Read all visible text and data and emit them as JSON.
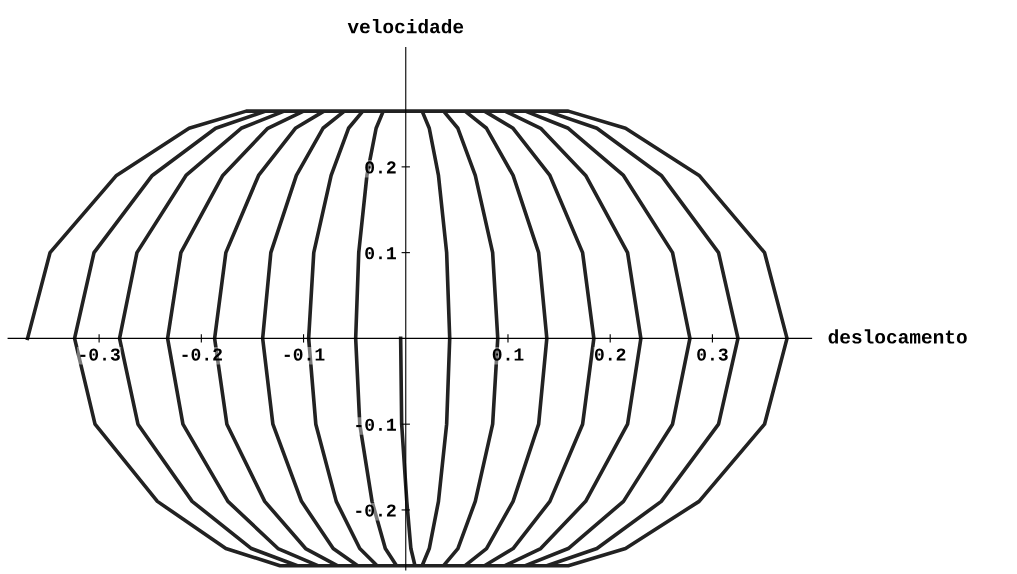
{
  "chart_data": {
    "type": "line",
    "xlabel": "deslocamento",
    "ylabel": "velocidade",
    "xlim": [
      -0.389,
      0.397
    ],
    "ylim": [
      -0.27,
      0.339
    ],
    "xticks": [
      -0.3,
      -0.2,
      -0.1,
      0.1,
      0.2,
      0.3
    ],
    "yticks": [
      -0.2,
      -0.1,
      0.1,
      0.2
    ],
    "grid": false,
    "legend": false,
    "marker": "none",
    "line_style": "solid",
    "series": [
      {
        "color": "#222222",
        "x": [
          -0.37,
          -0.348,
          -0.283,
          -0.212,
          -0.156,
          0.159,
          0.215,
          0.287,
          0.351,
          0.373,
          0.351,
          0.287,
          0.215,
          0.159,
          -0.123,
          -0.176,
          -0.243,
          -0.304,
          -0.324,
          -0.305,
          -0.248,
          -0.186,
          -0.137,
          0.138,
          0.187,
          0.25,
          0.306,
          0.325,
          0.306,
          0.25,
          0.187,
          0.138,
          -0.106,
          -0.151,
          -0.209,
          -0.262,
          -0.28,
          -0.263,
          -0.215,
          -0.161,
          -0.119,
          0.117,
          0.159,
          0.213,
          0.261,
          0.278,
          0.261,
          0.213,
          0.159,
          0.117,
          -0.086,
          -0.125,
          -0.174,
          -0.218,
          -0.233,
          -0.22,
          -0.179,
          -0.135,
          -0.1,
          0.097,
          0.132,
          0.176,
          0.217,
          0.23,
          0.217,
          0.176,
          0.132,
          0.097,
          -0.067,
          -0.098,
          -0.138,
          -0.175,
          -0.187,
          -0.176,
          -0.144,
          -0.108,
          -0.08,
          0.077,
          0.105,
          0.141,
          0.173,
          0.184,
          0.173,
          0.141,
          0.105,
          0.077,
          -0.047,
          -0.071,
          -0.102,
          -0.13,
          -0.14,
          -0.132,
          -0.107,
          -0.081,
          -0.06,
          0.058,
          0.079,
          0.105,
          0.13,
          0.138,
          0.13,
          0.105,
          0.079,
          0.058,
          -0.028,
          -0.045,
          -0.068,
          -0.088,
          -0.095,
          -0.09,
          -0.073,
          -0.056,
          -0.042,
          0.037,
          0.051,
          0.068,
          0.085,
          0.09,
          0.085,
          0.068,
          0.051,
          0.037,
          -0.009,
          -0.02,
          -0.033,
          -0.045,
          -0.049,
          -0.046,
          -0.038,
          -0.029,
          -0.022,
          0.016,
          0.023,
          0.032,
          0.04,
          0.043,
          0.04,
          0.032,
          0.023,
          0.016,
          0.009,
          0.005,
          0.001,
          -0.004,
          -0.005
        ],
        "values": [
          0,
          0.1,
          0.19,
          0.245,
          0.265,
          0.265,
          0.245,
          0.19,
          0.1,
          0,
          -0.1,
          -0.19,
          -0.245,
          -0.265,
          -0.265,
          -0.245,
          -0.19,
          -0.1,
          0,
          0.1,
          0.19,
          0.245,
          0.265,
          0.265,
          0.245,
          0.19,
          0.1,
          0,
          -0.1,
          -0.19,
          -0.245,
          -0.265,
          -0.265,
          -0.245,
          -0.19,
          -0.1,
          0,
          0.1,
          0.19,
          0.245,
          0.265,
          0.265,
          0.245,
          0.19,
          0.1,
          0,
          -0.1,
          -0.19,
          -0.245,
          -0.265,
          -0.265,
          -0.245,
          -0.19,
          -0.1,
          0,
          0.1,
          0.19,
          0.245,
          0.265,
          0.265,
          0.245,
          0.19,
          0.1,
          0,
          -0.1,
          -0.19,
          -0.245,
          -0.265,
          -0.265,
          -0.245,
          -0.19,
          -0.1,
          0,
          0.1,
          0.19,
          0.245,
          0.265,
          0.265,
          0.245,
          0.19,
          0.1,
          0,
          -0.1,
          -0.19,
          -0.245,
          -0.265,
          -0.265,
          -0.245,
          -0.19,
          -0.1,
          0,
          0.1,
          0.19,
          0.245,
          0.265,
          0.265,
          0.245,
          0.19,
          0.1,
          0,
          -0.1,
          -0.19,
          -0.245,
          -0.265,
          -0.265,
          -0.245,
          -0.19,
          -0.1,
          0,
          0.1,
          0.19,
          0.245,
          0.265,
          0.265,
          0.245,
          0.19,
          0.1,
          0,
          -0.1,
          -0.19,
          -0.245,
          -0.265,
          -0.265,
          -0.245,
          -0.19,
          -0.1,
          0,
          0.1,
          0.19,
          0.245,
          0.265,
          0.265,
          0.245,
          0.19,
          0.1,
          0,
          -0.1,
          -0.19,
          -0.245,
          -0.265,
          -0.265,
          -0.245,
          -0.19,
          -0.1,
          0
        ]
      }
    ]
  }
}
